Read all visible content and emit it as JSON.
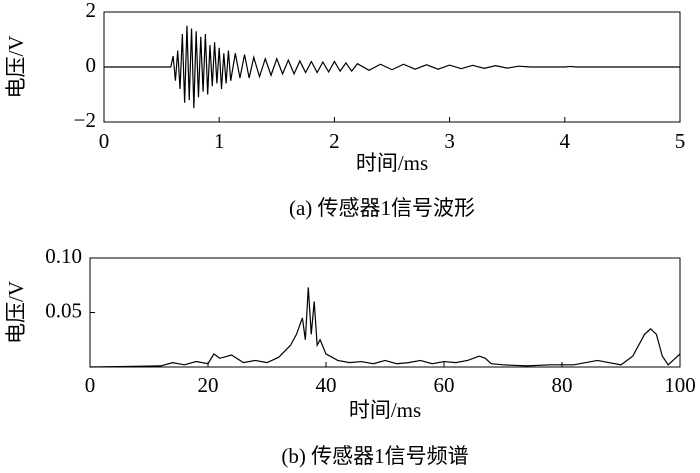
{
  "chart_data": [
    {
      "type": "line",
      "ylabel": "电压/V",
      "xlabel": "时间/ms",
      "caption": "(a) 传感器1信号波形",
      "color": "#000000",
      "xlim": [
        0,
        5
      ],
      "xticks": [
        0,
        1,
        2,
        3,
        4,
        5
      ],
      "ylim": [
        -2,
        2
      ],
      "yticks": [
        {
          "value": -2,
          "label": "−2"
        },
        0,
        2
      ],
      "x": [
        0,
        0.58,
        0.6,
        0.62,
        0.64,
        0.66,
        0.68,
        0.7,
        0.72,
        0.74,
        0.76,
        0.78,
        0.8,
        0.82,
        0.84,
        0.86,
        0.88,
        0.9,
        0.92,
        0.94,
        0.96,
        0.98,
        1.0,
        1.02,
        1.04,
        1.06,
        1.08,
        1.1,
        1.14,
        1.18,
        1.22,
        1.26,
        1.3,
        1.35,
        1.4,
        1.45,
        1.5,
        1.55,
        1.6,
        1.65,
        1.7,
        1.75,
        1.8,
        1.85,
        1.9,
        1.95,
        2.0,
        2.05,
        2.1,
        2.15,
        2.2,
        2.3,
        2.4,
        2.5,
        2.6,
        2.7,
        2.8,
        2.9,
        3.0,
        3.1,
        3.2,
        3.3,
        3.4,
        3.5,
        3.6,
        3.7,
        4.0,
        4.05,
        4.1,
        5
      ],
      "values": [
        0,
        0,
        0.4,
        -0.5,
        0.6,
        -0.8,
        1.2,
        -1.3,
        1.5,
        -1.2,
        1.4,
        -1.5,
        1.3,
        -1.1,
        1.1,
        -0.9,
        1.2,
        -1.0,
        0.8,
        -0.7,
        0.9,
        -0.6,
        0.7,
        -0.8,
        0.5,
        -0.6,
        0.6,
        -0.5,
        0.5,
        -0.4,
        0.45,
        -0.4,
        0.35,
        -0.35,
        0.3,
        -0.3,
        0.3,
        -0.25,
        0.25,
        -0.25,
        0.22,
        -0.2,
        0.2,
        -0.2,
        0.18,
        -0.18,
        0.2,
        -0.15,
        0.15,
        -0.15,
        0.12,
        -0.12,
        0.1,
        -0.1,
        0.1,
        -0.08,
        0.08,
        -0.08,
        0.07,
        -0.06,
        0.06,
        -0.05,
        0.05,
        -0.04,
        0.03,
        0,
        0,
        0.02,
        0,
        0
      ]
    },
    {
      "type": "line",
      "ylabel": "电压/V",
      "xlabel": "时间/ms",
      "caption": "(b) 传感器1信号频谱",
      "color": "#000000",
      "xlim": [
        0,
        100
      ],
      "xticks": [
        0,
        20,
        40,
        60,
        80,
        100
      ],
      "ylim": [
        0,
        0.1
      ],
      "yticks": [
        0.05,
        {
          "value": 0.1,
          "label": "0.10"
        }
      ],
      "x": [
        0,
        12,
        14,
        16,
        18,
        20,
        21,
        22,
        24,
        26,
        28,
        30,
        32,
        34,
        35,
        36,
        36.5,
        37,
        37.5,
        38,
        38.5,
        39,
        40,
        42,
        44,
        46,
        48,
        50,
        52,
        54,
        56,
        58,
        60,
        62,
        64,
        66,
        67,
        68,
        70,
        74,
        78,
        82,
        86,
        90,
        92,
        94,
        95,
        96,
        97,
        98,
        100
      ],
      "values": [
        0,
        0.001,
        0.004,
        0.002,
        0.005,
        0.003,
        0.012,
        0.008,
        0.011,
        0.004,
        0.006,
        0.004,
        0.009,
        0.02,
        0.03,
        0.045,
        0.025,
        0.073,
        0.03,
        0.06,
        0.02,
        0.025,
        0.012,
        0.006,
        0.004,
        0.005,
        0.003,
        0.006,
        0.003,
        0.004,
        0.006,
        0.003,
        0.005,
        0.004,
        0.006,
        0.01,
        0.008,
        0.003,
        0.002,
        0.001,
        0.002,
        0.002,
        0.006,
        0.002,
        0.01,
        0.03,
        0.035,
        0.03,
        0.01,
        0.002,
        0.012
      ]
    }
  ]
}
